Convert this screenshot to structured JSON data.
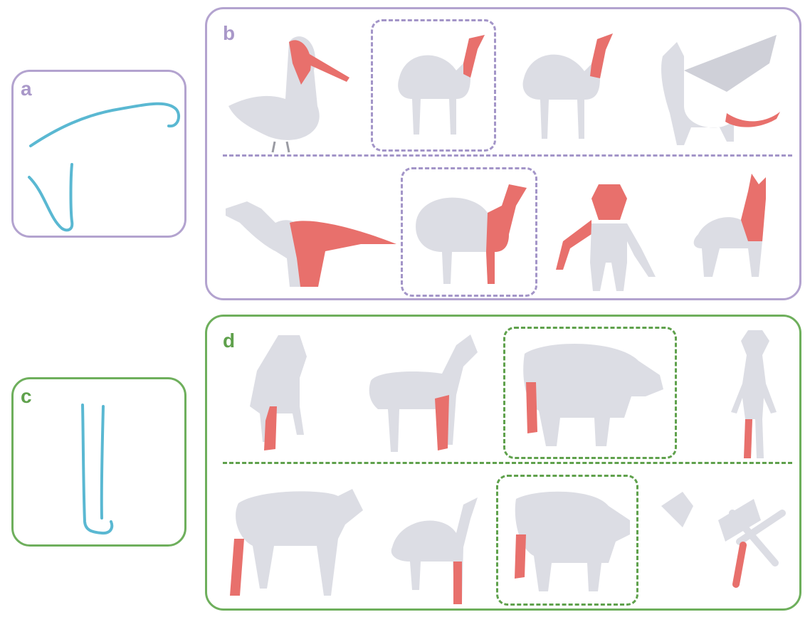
{
  "panels": {
    "a": {
      "label": "a"
    },
    "b": {
      "label": "b"
    },
    "c": {
      "label": "c"
    },
    "d": {
      "label": "d"
    }
  },
  "colors": {
    "purple_border": "#b3a3cf",
    "green_border": "#6eaf5c",
    "sketch_stroke": "#5ab8d2",
    "mesh_body": "#dcdde4",
    "mesh_highlight": "#e8706c"
  },
  "shapes": {
    "b_row1": [
      "pelican",
      "camel",
      "camel",
      "dragon"
    ],
    "b_row2": [
      "t-rex",
      "camel",
      "ogre-figure",
      "llama"
    ],
    "d_row1": [
      "dog",
      "horse",
      "bull",
      "elf-figure"
    ],
    "d_row2": [
      "calf",
      "camel",
      "bull",
      "office-chair"
    ]
  }
}
